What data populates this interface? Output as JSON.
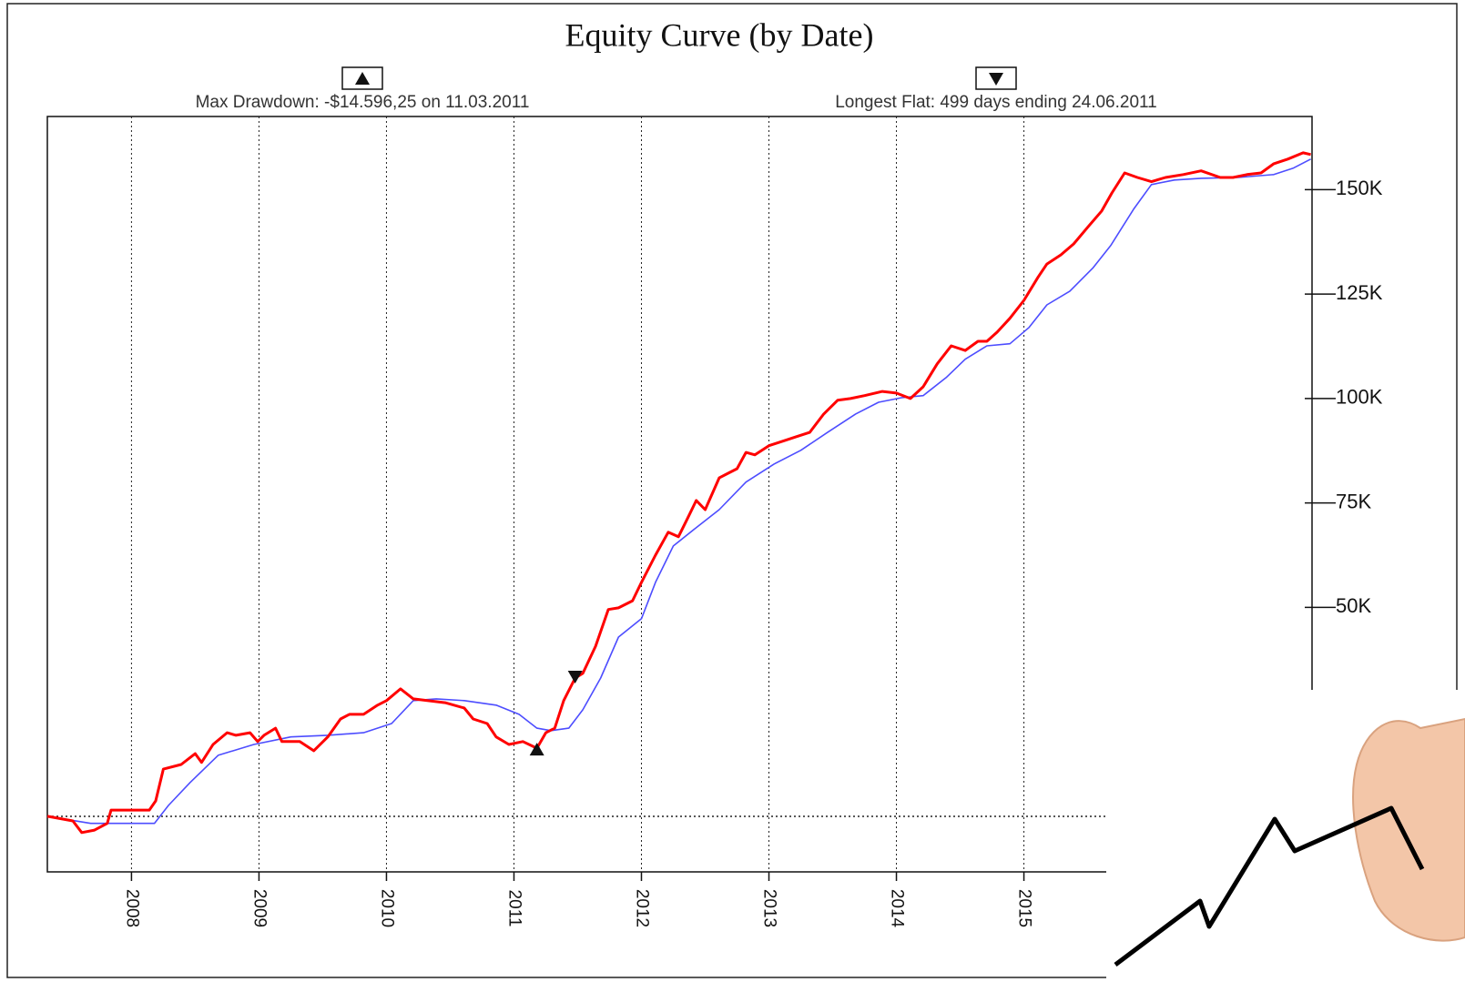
{
  "chart_data": {
    "type": "line",
    "title": "Equity Curve (by Date)",
    "annotations": [
      "Max Drawdown: -$14.596,25 on 11.03.2011",
      "Longest Flat: 499 days ending 24.06.2011"
    ],
    "xlim": [
      2007.34,
      2017.26
    ],
    "xticks": [
      2008,
      2009,
      2010,
      2011,
      2012,
      2013,
      2014,
      2015
    ],
    "ylim": [
      -13300,
      167500
    ],
    "yticks": [
      {
        "value": 50000,
        "label": "50K"
      },
      {
        "value": 75000,
        "label": "75K"
      },
      {
        "value": 100000,
        "label": "100K"
      },
      {
        "value": 125000,
        "label": "125K"
      },
      {
        "value": 150000,
        "label": "150K"
      }
    ],
    "grid": true,
    "baseline": 0,
    "series": [
      {
        "color": "#ff0000",
        "x": [
          2007.34,
          2007.54,
          2007.61,
          2007.71,
          2007.81,
          2007.84,
          2007.96,
          2008.14,
          2008.19,
          2008.25,
          2008.39,
          2008.5,
          2008.55,
          2008.64,
          2008.75,
          2008.82,
          2008.93,
          2008.99,
          2009.04,
          2009.13,
          2009.18,
          2009.32,
          2009.43,
          2009.54,
          2009.64,
          2009.71,
          2009.82,
          2009.93,
          2010.0,
          2010.11,
          2010.21,
          2010.32,
          2010.46,
          2010.61,
          2010.68,
          2010.79,
          2010.86,
          2010.96,
          2011.07,
          2011.18,
          2011.25,
          2011.32,
          2011.39,
          2011.48,
          2011.54,
          2011.64,
          2011.74,
          2011.82,
          2011.93,
          2012.0,
          2012.11,
          2012.21,
          2012.29,
          2012.36,
          2012.43,
          2012.5,
          2012.61,
          2012.68,
          2012.75,
          2012.82,
          2012.89,
          2013.0,
          2013.11,
          2013.21,
          2013.32,
          2013.43,
          2013.54,
          2013.64,
          2013.75,
          2013.89,
          2014.0,
          2014.11,
          2014.21,
          2014.32,
          2014.43,
          2014.54,
          2014.64,
          2014.71,
          2014.79,
          2014.89,
          2015.0,
          2015.11,
          2015.18,
          2015.29,
          2015.39,
          2015.5,
          2015.61,
          2015.69,
          2015.79,
          2015.89,
          2016.0,
          2016.11,
          2016.25,
          2016.39,
          2016.54,
          2016.64,
          2016.75,
          2016.86,
          2016.96,
          2017.07,
          2017.19,
          2017.25
        ],
        "values": [
          0,
          -1100,
          -3900,
          -3300,
          -1700,
          1500,
          1500,
          1500,
          3700,
          11300,
          12400,
          15000,
          12900,
          17200,
          20000,
          19400,
          20000,
          17900,
          19400,
          21100,
          17900,
          17900,
          15700,
          19000,
          23300,
          24400,
          24400,
          26600,
          27700,
          30500,
          28100,
          27700,
          27200,
          25900,
          23300,
          22200,
          19000,
          17200,
          17900,
          16300,
          20000,
          21100,
          27700,
          33100,
          34200,
          40700,
          49500,
          49900,
          51600,
          56000,
          62500,
          68000,
          66900,
          71200,
          75600,
          73400,
          81000,
          82100,
          83200,
          87100,
          86500,
          88700,
          89800,
          90800,
          91900,
          96300,
          99600,
          100000,
          100700,
          101700,
          101300,
          100000,
          102800,
          108300,
          112600,
          111500,
          113700,
          113700,
          115900,
          119200,
          123500,
          129000,
          132200,
          134400,
          137000,
          141000,
          144900,
          149200,
          154000,
          152900,
          151900,
          152900,
          153600,
          154500,
          152900,
          152900,
          153600,
          154000,
          156200,
          157300,
          158800,
          158400
        ]
      },
      {
        "color": "#4d4dff",
        "x": [
          2007.34,
          2007.68,
          2008.18,
          2008.29,
          2008.46,
          2008.68,
          2008.96,
          2009.25,
          2009.54,
          2009.82,
          2010.04,
          2010.21,
          2010.39,
          2010.61,
          2010.86,
          2011.04,
          2011.18,
          2011.29,
          2011.43,
          2011.54,
          2011.68,
          2011.82,
          2012.0,
          2012.11,
          2012.25,
          2012.43,
          2012.61,
          2012.82,
          2013.04,
          2013.25,
          2013.46,
          2013.68,
          2013.86,
          2014.04,
          2014.21,
          2014.39,
          2014.54,
          2014.71,
          2014.89,
          2015.04,
          2015.18,
          2015.36,
          2015.54,
          2015.68,
          2015.86,
          2016.0,
          2016.18,
          2016.39,
          2016.68,
          2016.96,
          2017.11,
          2017.25
        ],
        "values": [
          0,
          -1700,
          -1700,
          2600,
          8100,
          14600,
          17200,
          19000,
          19400,
          20000,
          22200,
          27700,
          28100,
          27700,
          26600,
          24400,
          21100,
          20500,
          21100,
          25500,
          33100,
          42900,
          47300,
          56000,
          64700,
          69100,
          73400,
          80000,
          84300,
          87600,
          91900,
          96300,
          99100,
          100200,
          100700,
          105000,
          109400,
          112600,
          113100,
          117000,
          122400,
          125700,
          131200,
          136600,
          145300,
          151200,
          152300,
          152700,
          152900,
          153600,
          155100,
          157300
        ]
      }
    ],
    "markers": [
      {
        "shape": "up",
        "x": 2011.18,
        "value": 16300
      },
      {
        "shape": "down",
        "x": 2011.48,
        "value": 33100
      }
    ]
  }
}
